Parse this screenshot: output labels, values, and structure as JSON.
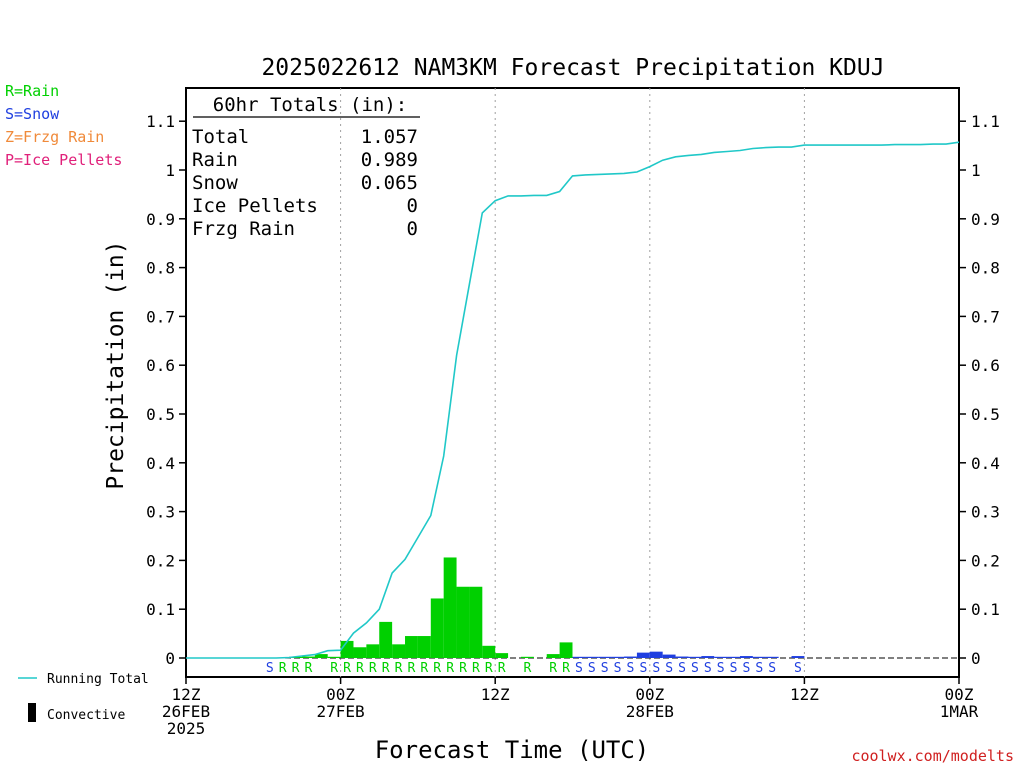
{
  "chart_data": {
    "type": "bar",
    "title": "2025022612 NAM3KM Forecast Precipitation KDUJ",
    "xlabel": "Forecast Time (UTC)",
    "ylabel": "Precipitation (in)",
    "ylim": [
      0,
      1.15
    ],
    "xlim_hours": [
      0,
      60
    ],
    "yticks": [
      "0",
      "0.1",
      "0.2",
      "0.3",
      "0.4",
      "0.5",
      "0.6",
      "0.7",
      "0.8",
      "0.9",
      "1",
      "1.1"
    ],
    "xticks": [
      {
        "hour": 0,
        "lines": [
          "12Z",
          "26FEB",
          "2025"
        ]
      },
      {
        "hour": 12,
        "lines": [
          "00Z",
          "27FEB"
        ]
      },
      {
        "hour": 24,
        "lines": [
          "12Z"
        ]
      },
      {
        "hour": 36,
        "lines": [
          "00Z",
          "28FEB"
        ]
      },
      {
        "hour": 48,
        "lines": [
          "12Z"
        ]
      },
      {
        "hour": 60,
        "lines": [
          "00Z",
          "1MAR"
        ]
      }
    ],
    "grid": "vertical dotted at 00Z/12Z",
    "totals_box": {
      "heading": "60hr Totals (in):",
      "rows": [
        {
          "label": "Total",
          "value": "1.057"
        },
        {
          "label": "Rain",
          "value": "0.989"
        },
        {
          "label": "Snow",
          "value": "0.065"
        },
        {
          "label": "Ice Pellets",
          "value": "0"
        },
        {
          "label": "Frzg Rain",
          "value": "0"
        }
      ]
    },
    "hourly_bars": [
      {
        "hour": 9,
        "value": 0.002,
        "type": "rain"
      },
      {
        "hour": 10,
        "value": 0.003,
        "type": "rain"
      },
      {
        "hour": 11,
        "value": 0.008,
        "type": "rain"
      },
      {
        "hour": 12,
        "value": 0.001,
        "type": "rain"
      },
      {
        "hour": 13,
        "value": 0.035,
        "type": "rain"
      },
      {
        "hour": 14,
        "value": 0.022,
        "type": "rain"
      },
      {
        "hour": 15,
        "value": 0.028,
        "type": "rain"
      },
      {
        "hour": 16,
        "value": 0.074,
        "type": "rain"
      },
      {
        "hour": 17,
        "value": 0.028,
        "type": "rain"
      },
      {
        "hour": 18,
        "value": 0.045,
        "type": "rain"
      },
      {
        "hour": 19,
        "value": 0.045,
        "type": "rain"
      },
      {
        "hour": 20,
        "value": 0.122,
        "type": "rain"
      },
      {
        "hour": 21,
        "value": 0.206,
        "type": "rain"
      },
      {
        "hour": 22,
        "value": 0.146,
        "type": "rain"
      },
      {
        "hour": 23,
        "value": 0.146,
        "type": "rain"
      },
      {
        "hour": 24,
        "value": 0.025,
        "type": "rain"
      },
      {
        "hour": 25,
        "value": 0.01,
        "type": "rain"
      },
      {
        "hour": 27,
        "value": 0.001,
        "type": "rain"
      },
      {
        "hour": 29,
        "value": 0.008,
        "type": "rain"
      },
      {
        "hour": 30,
        "value": 0.032,
        "type": "rain"
      },
      {
        "hour": 31,
        "value": 0.002,
        "type": "snow"
      },
      {
        "hour": 32,
        "value": 0.001,
        "type": "snow"
      },
      {
        "hour": 33,
        "value": 0.001,
        "type": "snow"
      },
      {
        "hour": 34,
        "value": 0.001,
        "type": "snow"
      },
      {
        "hour": 35,
        "value": 0.003,
        "type": "snow"
      },
      {
        "hour": 36,
        "value": 0.011,
        "type": "snow"
      },
      {
        "hour": 37,
        "value": 0.013,
        "type": "snow"
      },
      {
        "hour": 38,
        "value": 0.007,
        "type": "snow"
      },
      {
        "hour": 39,
        "value": 0.003,
        "type": "snow"
      },
      {
        "hour": 40,
        "value": 0.002,
        "type": "snow"
      },
      {
        "hour": 41,
        "value": 0.004,
        "type": "snow"
      },
      {
        "hour": 42,
        "value": 0.002,
        "type": "snow"
      },
      {
        "hour": 43,
        "value": 0.002,
        "type": "snow"
      },
      {
        "hour": 44,
        "value": 0.004,
        "type": "snow"
      },
      {
        "hour": 45,
        "value": 0.002,
        "type": "snow"
      },
      {
        "hour": 46,
        "value": 0.001,
        "type": "snow"
      },
      {
        "hour": 48,
        "value": 0.004,
        "type": "snow"
      }
    ],
    "running_total": {
      "name": "Running Total",
      "hours": [
        0,
        1,
        2,
        3,
        4,
        5,
        6,
        7,
        8,
        9,
        10,
        11,
        12,
        13,
        14,
        15,
        16,
        17,
        18,
        19,
        20,
        21,
        22,
        23,
        24,
        25,
        26,
        27,
        28,
        29,
        30,
        31,
        32,
        33,
        34,
        35,
        36,
        37,
        38,
        39,
        40,
        41,
        42,
        43,
        44,
        45,
        46,
        47,
        48,
        49,
        50,
        51,
        52,
        53,
        54,
        55,
        56,
        57,
        58,
        59,
        60
      ],
      "values": [
        0,
        0,
        0,
        0,
        0,
        0,
        0,
        0,
        0.001,
        0.004,
        0.007,
        0.015,
        0.016,
        0.051,
        0.072,
        0.1,
        0.174,
        0.202,
        0.247,
        0.292,
        0.414,
        0.62,
        0.766,
        0.912,
        0.937,
        0.947,
        0.947,
        0.948,
        0.948,
        0.956,
        0.988,
        0.99,
        0.991,
        0.992,
        0.993,
        0.996,
        1.007,
        1.02,
        1.027,
        1.03,
        1.032,
        1.036,
        1.038,
        1.04,
        1.044,
        1.046,
        1.047,
        1.047,
        1.051,
        1.051,
        1.051,
        1.051,
        1.051,
        1.051,
        1.051,
        1.052,
        1.052,
        1.052,
        1.053,
        1.053,
        1.057
      ]
    },
    "type_labels": [
      {
        "hour": 7,
        "text": "S",
        "type": "snow"
      },
      {
        "hour": 8,
        "text": "R",
        "type": "rain"
      },
      {
        "hour": 9,
        "text": "R",
        "type": "rain"
      },
      {
        "hour": 10,
        "text": "R",
        "type": "rain"
      },
      {
        "hour": 12,
        "text": "R",
        "type": "rain"
      },
      {
        "hour": 13,
        "text": "R",
        "type": "rain"
      },
      {
        "hour": 14,
        "text": "R",
        "type": "rain"
      },
      {
        "hour": 15,
        "text": "R",
        "type": "rain"
      },
      {
        "hour": 16,
        "text": "R",
        "type": "rain"
      },
      {
        "hour": 17,
        "text": "R",
        "type": "rain"
      },
      {
        "hour": 18,
        "text": "R",
        "type": "rain"
      },
      {
        "hour": 19,
        "text": "R",
        "type": "rain"
      },
      {
        "hour": 20,
        "text": "R",
        "type": "rain"
      },
      {
        "hour": 21,
        "text": "R",
        "type": "rain"
      },
      {
        "hour": 22,
        "text": "R",
        "type": "rain"
      },
      {
        "hour": 23,
        "text": "R",
        "type": "rain"
      },
      {
        "hour": 24,
        "text": "R",
        "type": "rain"
      },
      {
        "hour": 25,
        "text": "R",
        "type": "rain"
      },
      {
        "hour": 27,
        "text": "R",
        "type": "rain"
      },
      {
        "hour": 29,
        "text": "R",
        "type": "rain"
      },
      {
        "hour": 30,
        "text": "R",
        "type": "rain"
      },
      {
        "hour": 31,
        "text": "S",
        "type": "snow"
      },
      {
        "hour": 32,
        "text": "S",
        "type": "snow"
      },
      {
        "hour": 33,
        "text": "S",
        "type": "snow"
      },
      {
        "hour": 34,
        "text": "S",
        "type": "snow"
      },
      {
        "hour": 35,
        "text": "S",
        "type": "snow"
      },
      {
        "hour": 36,
        "text": "S",
        "type": "snow"
      },
      {
        "hour": 37,
        "text": "S",
        "type": "snow"
      },
      {
        "hour": 38,
        "text": "S",
        "type": "snow"
      },
      {
        "hour": 39,
        "text": "S",
        "type": "snow"
      },
      {
        "hour": 40,
        "text": "S",
        "type": "snow"
      },
      {
        "hour": 41,
        "text": "S",
        "type": "snow"
      },
      {
        "hour": 42,
        "text": "S",
        "type": "snow"
      },
      {
        "hour": 43,
        "text": "S",
        "type": "snow"
      },
      {
        "hour": 44,
        "text": "S",
        "type": "snow"
      },
      {
        "hour": 45,
        "text": "S",
        "type": "snow"
      },
      {
        "hour": 46,
        "text": "S",
        "type": "snow"
      },
      {
        "hour": 48,
        "text": "S",
        "type": "snow"
      }
    ],
    "legend_types": [
      {
        "text": "R=Rain",
        "type": "rain"
      },
      {
        "text": "S=Snow",
        "type": "snow"
      },
      {
        "text": "Z=Frzg Rain",
        "type": "frzg"
      },
      {
        "text": "P=Ice Pellets",
        "type": "ice"
      }
    ],
    "legend_bottom": {
      "running_total": "Running Total",
      "convective": "Convective"
    },
    "credit": "coolwx.com/modelts",
    "colors": {
      "rain": "#00d000",
      "snow": "#1f3fe0",
      "frzg": "#f08a3a",
      "ice": "#e0207a",
      "running_total": "#20c8c8",
      "convective": "#000000",
      "credit": "#d02020",
      "grid": "#a0a0a0"
    }
  }
}
